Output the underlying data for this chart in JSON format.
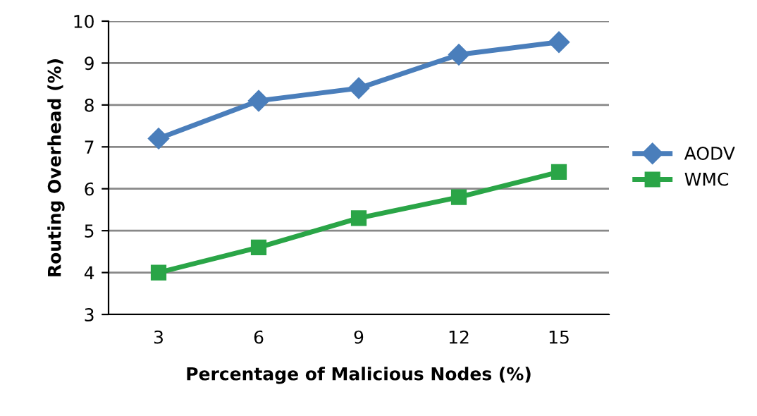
{
  "chart_data": {
    "type": "line",
    "xlabel": "Percentage of Malicious Nodes (%)",
    "ylabel": "Routing Overhead (%)",
    "categories": [
      "3",
      "6",
      "9",
      "12",
      "15"
    ],
    "series": [
      {
        "name": "AODV",
        "color": "#4a7ebb",
        "marker": "diamond",
        "values": [
          7.2,
          8.1,
          8.4,
          9.2,
          9.5
        ]
      },
      {
        "name": "WMC",
        "color": "#2aa547",
        "marker": "square",
        "values": [
          4.0,
          4.6,
          5.3,
          5.8,
          6.4
        ]
      }
    ],
    "ylim": [
      3,
      10
    ],
    "yticks": [
      3,
      4,
      5,
      6,
      7,
      8,
      9,
      10
    ],
    "grid": "y",
    "legend": "right",
    "line_style": "solid"
  }
}
